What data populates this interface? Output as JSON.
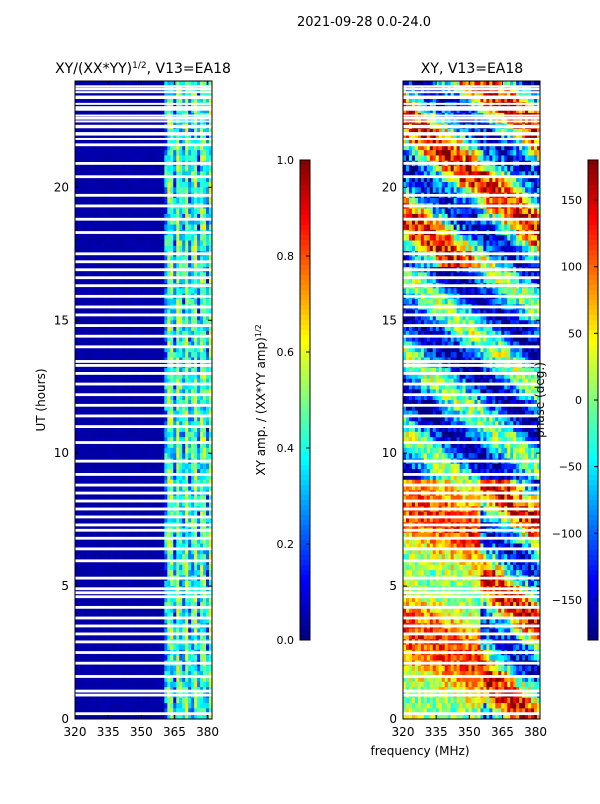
{
  "figure_title": "2021-09-28 0.0-24.0",
  "colors": {
    "background": "#ffffff",
    "blank_row": "#ffffff",
    "axis": "#000000",
    "jet": [
      "#00007f",
      "#0000ff",
      "#007fff",
      "#00ffff",
      "#7fff7f",
      "#ffff00",
      "#ff7f00",
      "#ff0000",
      "#7f0000"
    ]
  },
  "shared": {
    "ylabel": "UT (hours)",
    "xlabel": "frequency (MHz)",
    "ylim": [
      0,
      24
    ],
    "xlim": [
      320,
      382
    ],
    "yticks": [
      0,
      5,
      10,
      15,
      20
    ],
    "xticks": [
      320,
      335,
      350,
      365,
      380
    ],
    "blank_rows_hours": [
      0.2,
      0.9,
      1.05,
      1.6,
      2.1,
      2.5,
      2.9,
      3.2,
      3.5,
      3.8,
      4.2,
      4.6,
      4.75,
      4.9,
      5.3,
      5.95,
      6.4,
      6.8,
      7.1,
      7.3,
      7.6,
      7.9,
      8.2,
      8.5,
      8.8,
      9.2,
      9.7,
      10.4,
      11.0,
      11.4,
      11.8,
      12.2,
      12.6,
      13.0,
      13.3,
      13.45,
      14.0,
      14.4,
      14.8,
      15.2,
      15.5,
      15.9,
      16.3,
      16.6,
      16.9,
      17.2,
      17.5,
      18.3,
      18.8,
      19.3,
      19.7,
      20.4,
      20.9,
      21.6,
      22.0,
      22.3,
      22.6,
      23.0,
      23.4,
      23.7
    ],
    "dense_blank_hours": [
      21.6,
      23.9
    ]
  },
  "chart_data": [
    {
      "type": "heatmap",
      "title_prefix": "XY/(XX*YY)",
      "title_sup": "1/2",
      "title_suffix": ", V13=EA18",
      "x_range": [
        320,
        382
      ],
      "y_range": [
        0,
        24
      ],
      "colorbar": {
        "label_prefix": "XY amp. / (XX*YY amp)",
        "label_sup": "1/2",
        "range": [
          0.0,
          1.0
        ],
        "ticks": [
          0.0,
          0.2,
          0.4,
          0.6,
          0.8,
          1.0
        ],
        "tick_labels": [
          "0.0",
          "0.2",
          "0.4",
          "0.6",
          "0.8",
          "1.0"
        ]
      },
      "approx_values": {
        "below_360_MHz": 0.03,
        "above_360_MHz_mean": 0.4,
        "above_360_MHz_range": [
          0.1,
          0.65
        ]
      }
    },
    {
      "type": "heatmap",
      "title": "XY, V13=EA18",
      "x_range": [
        320,
        382
      ],
      "y_range": [
        0,
        24
      ],
      "colorbar": {
        "label": "phase (deg.)",
        "range": [
          -180,
          180
        ],
        "ticks": [
          -150,
          -100,
          -50,
          0,
          50,
          100,
          150
        ],
        "tick_labels": [
          "−150",
          "−100",
          "−50",
          "0",
          "50",
          "100",
          "150"
        ]
      },
      "approx_values": {
        "range_deg": [
          -180,
          180
        ],
        "early_hours_0_to_9_low_freq_deg": 60,
        "mid_hours_9_to_17_deg": -80
      }
    }
  ]
}
